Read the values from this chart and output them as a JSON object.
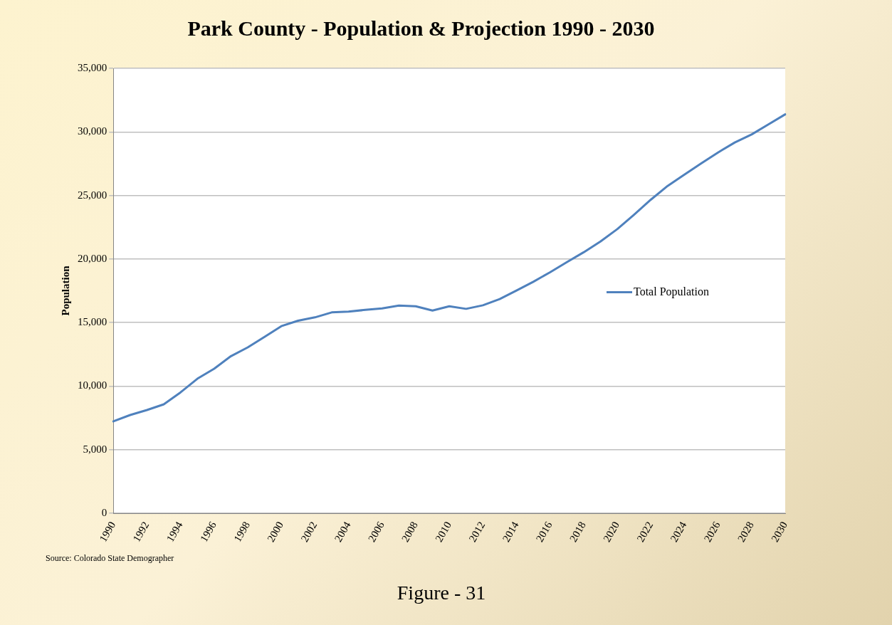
{
  "chart_data": {
    "type": "line",
    "title": "Park County - Population & Projection 1990 - 2030",
    "ylabel": "Population",
    "categories": [
      "1990",
      null,
      "1992",
      null,
      "1994",
      null,
      "1996",
      null,
      "1998",
      null,
      "2000",
      null,
      "2002",
      null,
      "2004",
      null,
      "2006",
      null,
      "2008",
      null,
      "2010",
      null,
      "2012",
      null,
      "2014",
      null,
      "2016",
      null,
      "2018",
      null,
      "2020",
      null,
      "2022",
      null,
      "2024",
      null,
      "2026",
      null,
      "2028",
      null,
      "2030"
    ],
    "series": [
      {
        "name": "Total Population",
        "color": "#4f81bd",
        "values": [
          7230,
          7730,
          8120,
          8570,
          9510,
          10580,
          11370,
          12360,
          13050,
          13880,
          14720,
          15150,
          15410,
          15800,
          15860,
          16000,
          16120,
          16340,
          16280,
          15950,
          16280,
          16080,
          16360,
          16850,
          17520,
          18210,
          18960,
          19750,
          20530,
          21380,
          22350,
          23490,
          24670,
          25750,
          26640,
          27530,
          28380,
          29170,
          29800,
          30590,
          31380
        ]
      }
    ],
    "ylim": [
      0,
      35000
    ],
    "yticks": [
      0,
      {
        "value": 5000,
        "label": "5,000"
      },
      {
        "value": 10000,
        "label": "10,000"
      },
      {
        "value": 15000,
        "label": "15,000"
      },
      {
        "value": 20000,
        "label": "20,000"
      },
      {
        "value": 25000,
        "label": "25,000"
      },
      {
        "value": 30000,
        "label": "30,000"
      },
      {
        "value": 35000,
        "label": "35,000"
      }
    ],
    "grid": "y",
    "legend": "right",
    "marker": "none",
    "line_style": "solid",
    "annotations": [
      "Source: Colorado State Demographer",
      "Figure - 31"
    ]
  }
}
